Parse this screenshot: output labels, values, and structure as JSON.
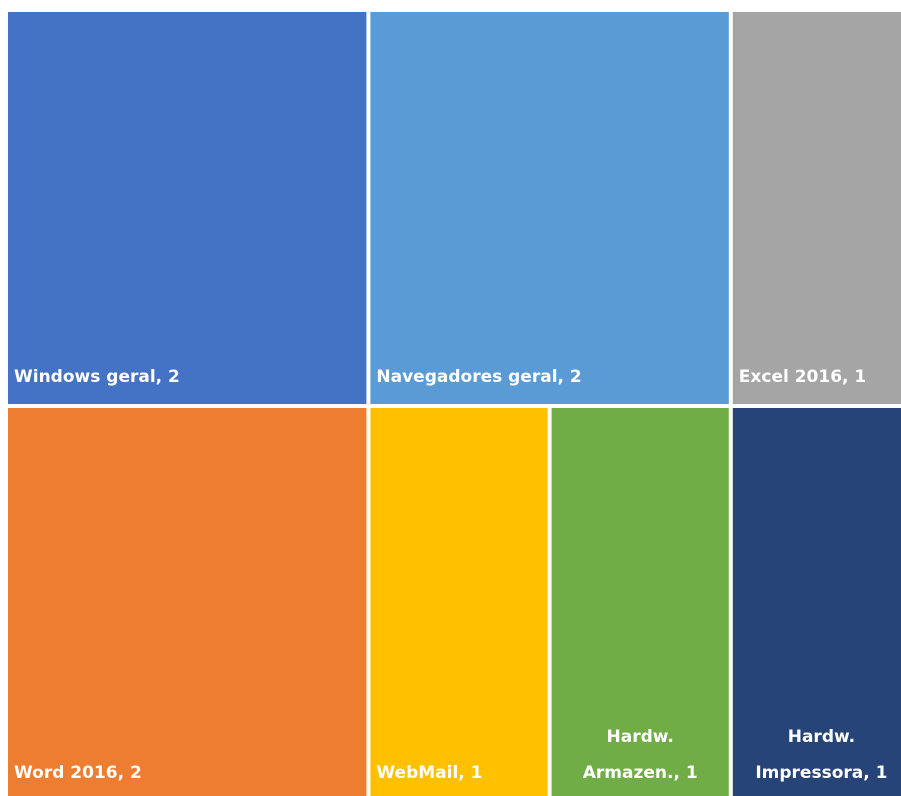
{
  "chart_data": {
    "type": "treemap",
    "values": [
      2,
      2,
      2,
      1,
      1,
      1,
      1
    ],
    "labels": [
      [
        "Windows geral, 2"
      ],
      [
        "Word 2016, 2"
      ],
      [
        "Navegadores geral, 2"
      ],
      [
        "WebMail, 1"
      ],
      [
        "Hardw.",
        "Armazen., 1"
      ],
      [
        "Excel 2016, 1"
      ],
      [
        "Hardw.",
        "Impressora, 1"
      ]
    ],
    "colors": [
      "#4472c4",
      "#ed7d31",
      "#5b9bd5",
      "#ffc000",
      "#70ad47",
      "#a5a5a5",
      "#264478"
    ]
  }
}
